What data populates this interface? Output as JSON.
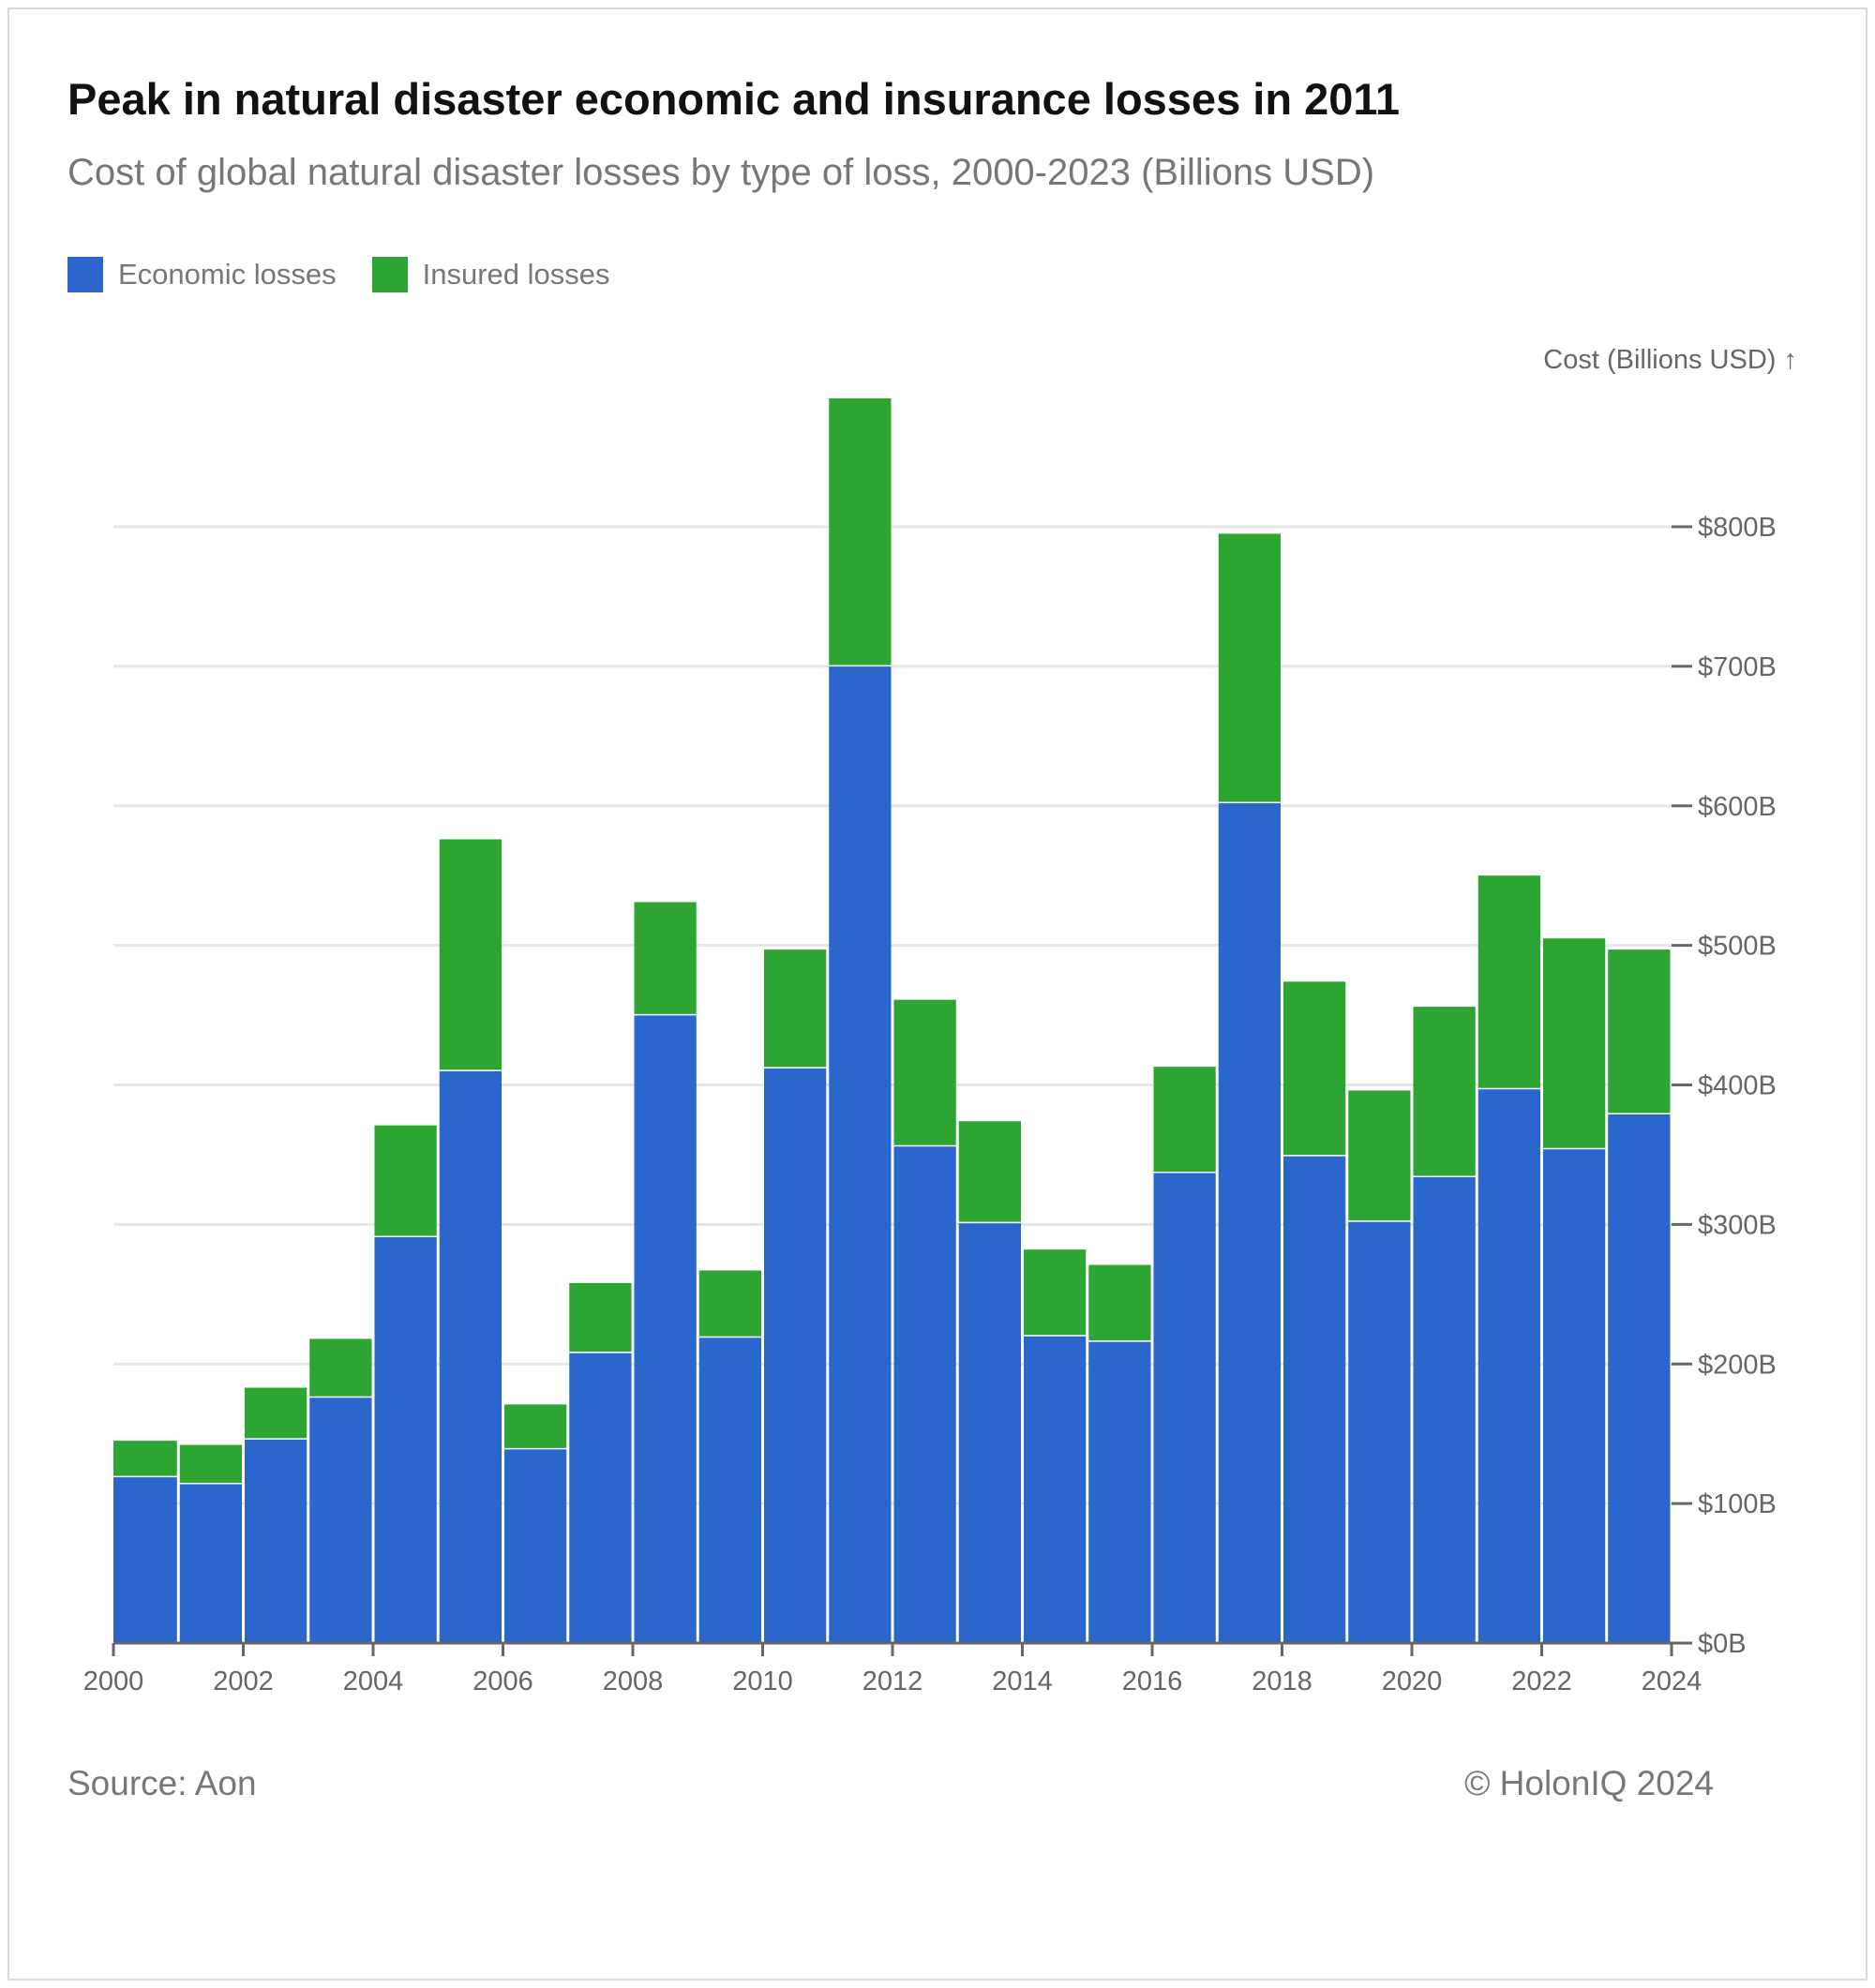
{
  "header": {
    "title": "Peak in natural disaster economic and insurance losses in 2011",
    "subtitle": "Cost of global natural disaster losses by type of loss, 2000-2023 (Billions USD)"
  },
  "legend": {
    "items": [
      {
        "label": "Economic losses",
        "color": "#2a66cc"
      },
      {
        "label": "Insured losses",
        "color": "#2ca532"
      }
    ]
  },
  "footer": {
    "source": "Source: Aon",
    "copyright": "© HolonIQ 2024"
  },
  "chart_data": {
    "type": "bar",
    "stacked": true,
    "title": "Peak in natural disaster economic and insurance losses in 2011",
    "subtitle": "Cost of global natural disaster losses by type of loss, 2000-2023 (Billions USD)",
    "ylabel": "Cost (Billions USD) ↑",
    "xlabel": "",
    "ylim": [
      0,
      900
    ],
    "xlim": [
      2000,
      2024
    ],
    "y_ticks": [
      0,
      100,
      200,
      300,
      400,
      500,
      600,
      700,
      800
    ],
    "y_tick_labels": [
      "$0B",
      "$100B",
      "$200B",
      "$300B",
      "$400B",
      "$500B",
      "$600B",
      "$700B",
      "$800B"
    ],
    "x_ticks": [
      2000,
      2002,
      2004,
      2006,
      2008,
      2010,
      2012,
      2014,
      2016,
      2018,
      2020,
      2022,
      2024
    ],
    "x_tick_labels": [
      "2000",
      "2002",
      "2004",
      "2006",
      "2008",
      "2010",
      "2012",
      "2014",
      "2016",
      "2018",
      "2020",
      "2022",
      "2024"
    ],
    "grid": true,
    "legend_position": "top-left",
    "colors": {
      "economic": "#2a66cc",
      "insured": "#2ca532",
      "grid": "#e6e6e6",
      "axis": "#666666"
    },
    "categories": [
      "2000",
      "2001",
      "2002",
      "2003",
      "2004",
      "2005",
      "2006",
      "2007",
      "2008",
      "2009",
      "2010",
      "2011",
      "2012",
      "2013",
      "2014",
      "2015",
      "2016",
      "2017",
      "2018",
      "2019",
      "2020",
      "2021",
      "2022",
      "2023"
    ],
    "series": [
      {
        "name": "Economic losses",
        "values": [
          119,
          114,
          146,
          176,
          291,
          410,
          139,
          208,
          450,
          219,
          412,
          700,
          356,
          301,
          220,
          216,
          337,
          602,
          349,
          302,
          334,
          397,
          354,
          379
        ]
      },
      {
        "name": "Insured losses",
        "values": [
          26,
          28,
          37,
          42,
          80,
          166,
          32,
          50,
          81,
          48,
          85,
          192,
          105,
          73,
          62,
          55,
          76,
          193,
          125,
          94,
          122,
          153,
          151,
          118
        ]
      }
    ]
  }
}
